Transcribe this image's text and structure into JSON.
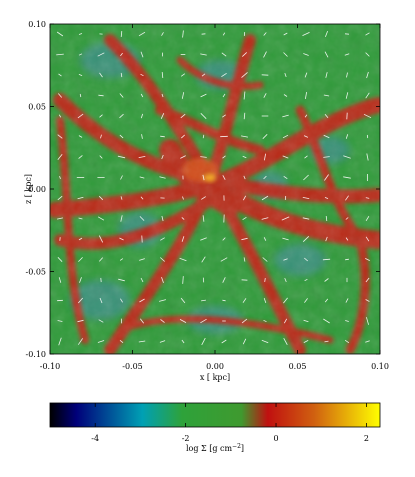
{
  "map": {
    "x_axis": {
      "label": "x [ kpc]",
      "range": [
        -0.1,
        0.1
      ],
      "ticks": [
        "-0.10",
        "-0.05",
        "0.00",
        "0.05",
        "0.10"
      ]
    },
    "y_axis": {
      "label": "z [ kpc]",
      "range": [
        -0.1,
        0.1
      ],
      "ticks": [
        "0.10",
        "0.05",
        "0.00",
        "-0.05",
        "-0.10"
      ]
    },
    "background_color": "#2f9a39",
    "filament_color": "#c42412",
    "void_color": "#3a8f86",
    "vector_color": "#ffffff"
  },
  "colorbar": {
    "label": "log Σ [g cm",
    "label_superscript": "−2",
    "label_close": "]",
    "range": [
      -5,
      2.3
    ],
    "ticks": [
      "-4",
      "-2",
      "0",
      "2"
    ],
    "tick_values": [
      -4,
      -2,
      0,
      2
    ],
    "colors": [
      "#000000",
      "#00007a",
      "#00a0b4",
      "#2ea23a",
      "#3f9a2f",
      "#c01010",
      "#d06010",
      "#ffff00"
    ]
  }
}
